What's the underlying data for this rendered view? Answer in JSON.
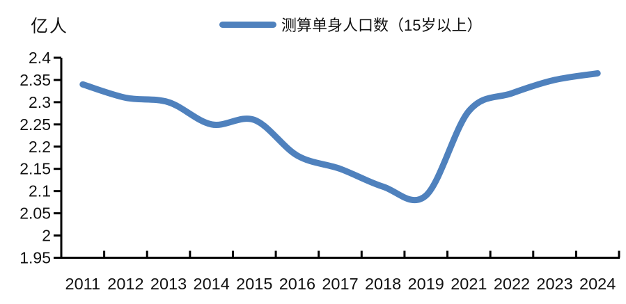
{
  "unit_label": "亿人",
  "legend": {
    "label": "测算单身人口数（15岁以上）",
    "line_color": "#4F81BD"
  },
  "chart_data": {
    "type": "line",
    "title": "",
    "xlabel": "",
    "ylabel": "亿人",
    "categories": [
      "2011",
      "2012",
      "2013",
      "2014",
      "2015",
      "2016",
      "2017",
      "2018",
      "2019",
      "2021",
      "2022",
      "2023",
      "2024"
    ],
    "series": [
      {
        "name": "测算单身人口数（15岁以上）",
        "values": [
          2.34,
          2.31,
          2.3,
          2.25,
          2.26,
          2.18,
          2.15,
          2.11,
          2.09,
          2.28,
          2.32,
          2.35,
          2.365
        ]
      }
    ],
    "ylim": [
      1.95,
      2.4
    ],
    "ytick_step": 0.05,
    "ytick_labels": [
      "1.95",
      "2",
      "2.05",
      "2.1",
      "2.15",
      "2.2",
      "2.25",
      "2.3",
      "2.35",
      "2.4"
    ],
    "grid": false,
    "smooth": true,
    "legend_position": "top",
    "line_color": "#4F81BD",
    "axis_color": "#000000",
    "text_color": "#111111"
  }
}
